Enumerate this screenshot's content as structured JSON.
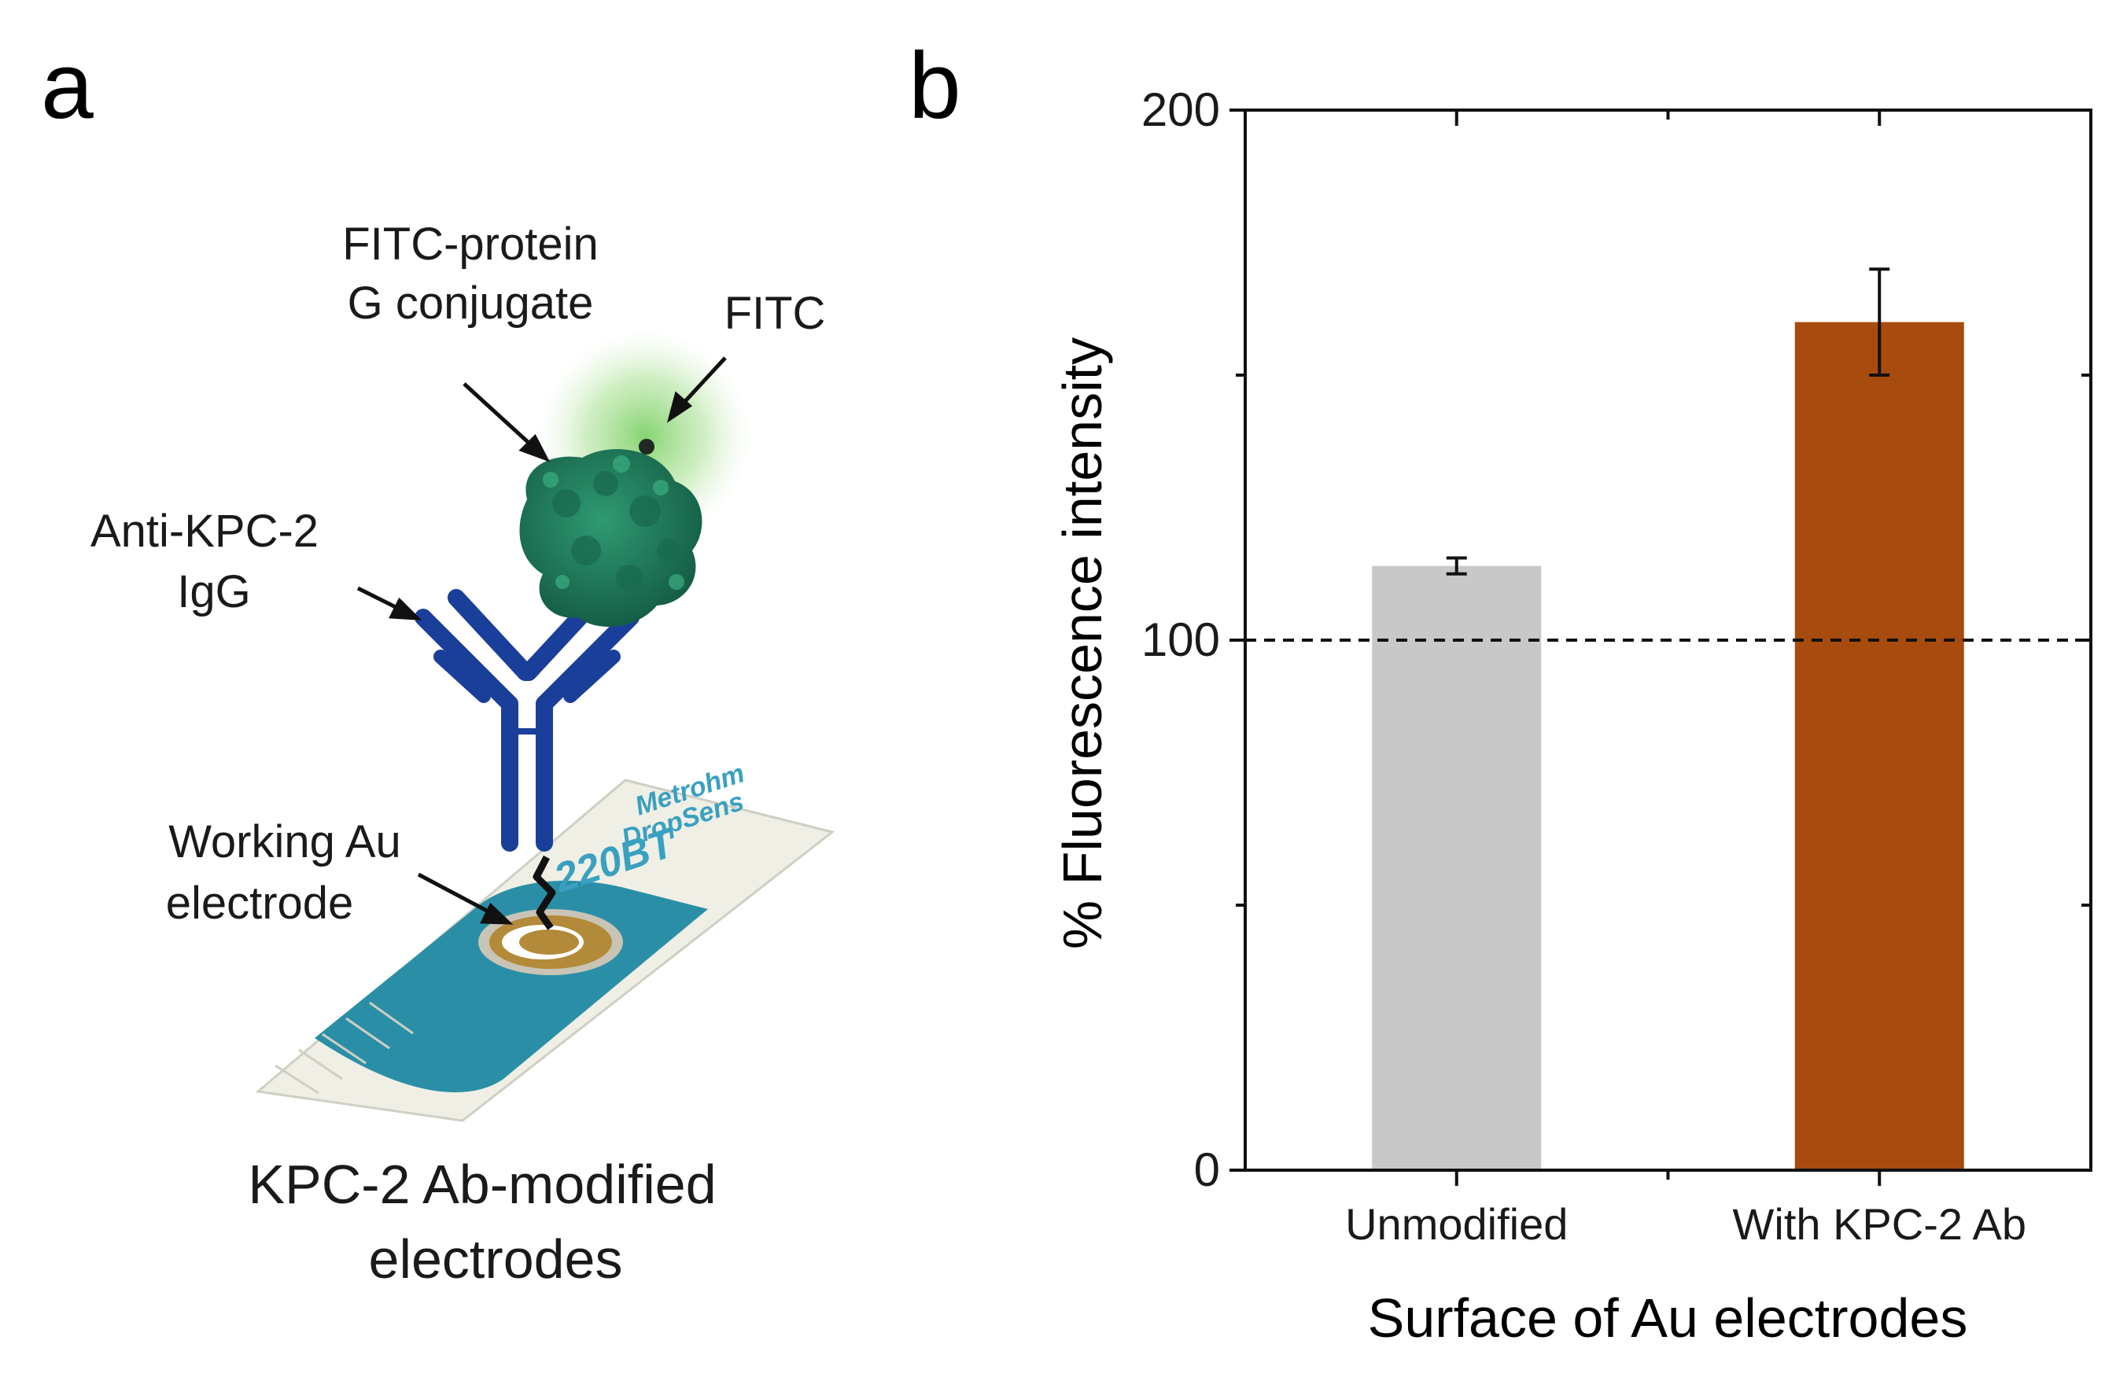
{
  "panel_a": {
    "letter": "a",
    "labels": {
      "fitc_protein_line1": "FITC-protein",
      "fitc_protein_line2": "G conjugate",
      "fitc": "FITC",
      "anti_kpc_line1": "Anti-KPC-2",
      "anti_kpc_line2": "IgG",
      "working_line1": "Working Au",
      "working_line2": "electrode",
      "strip_brand_line1": "Metrohm",
      "strip_brand_line2": "DropSens",
      "strip_model": "220BT"
    },
    "caption_line1": "KPC-2 Ab-modified",
    "caption_line2": "electrodes",
    "colors": {
      "antibody": "#1a3f9a",
      "protein": "#1e7a5c",
      "fitc_glow": "#7fd16a",
      "strip_teal": "#2a8fa6",
      "gold": "#b38a3a"
    }
  },
  "panel_b": {
    "letter": "b"
  },
  "chart_data": {
    "type": "bar",
    "categories": [
      "Unmodified",
      "With KPC-2 Ab"
    ],
    "values": [
      114,
      160
    ],
    "errors": [
      1.5,
      10
    ],
    "bar_colors": [
      "#c8c8c8",
      "#a84b0e"
    ],
    "xlabel": "Surface of Au electrodes",
    "ylabel": "% Fluorescence intensity",
    "ylim": [
      0,
      200
    ],
    "yticks": [
      0,
      100,
      200
    ],
    "reference_line": 100,
    "grid": false
  }
}
